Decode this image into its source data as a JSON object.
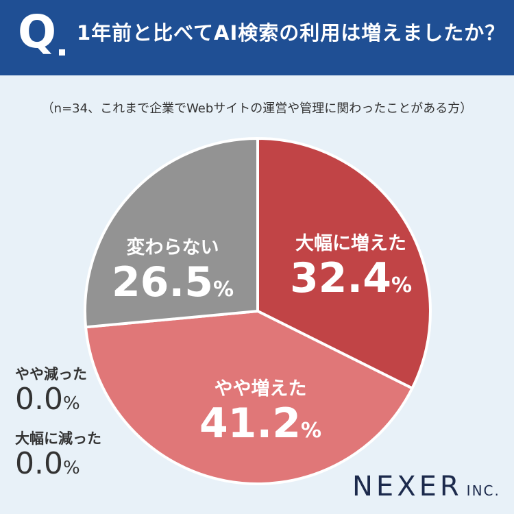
{
  "header": {
    "mark": "Q",
    "question": "1年前と比べてAI検索の利用は増えましたか？"
  },
  "note": "（n=34、これまで企業でWebサイトの運営や管理に関わったことがある方）",
  "chart_data": {
    "type": "pie",
    "title": "",
    "slices": [
      {
        "label": "大幅に増えた",
        "value": 32.4,
        "value_text": "32.4",
        "unit": "%",
        "color": "#c14446"
      },
      {
        "label": "やや増えた",
        "value": 41.2,
        "value_text": "41.2",
        "unit": "%",
        "color": "#e07778"
      },
      {
        "label": "やや減った",
        "value": 0.0,
        "value_text": "0.0",
        "unit": "%",
        "color": "#8a8a8a"
      },
      {
        "label": "大幅に減った",
        "value": 0.0,
        "value_text": "0.0",
        "unit": "%",
        "color": "#8a8a8a"
      },
      {
        "label": "変わらない",
        "value": 26.5,
        "value_text": "26.5",
        "unit": "%",
        "color": "#939393"
      }
    ]
  },
  "logo": {
    "main": "NEXER",
    "suffix": "INC."
  }
}
